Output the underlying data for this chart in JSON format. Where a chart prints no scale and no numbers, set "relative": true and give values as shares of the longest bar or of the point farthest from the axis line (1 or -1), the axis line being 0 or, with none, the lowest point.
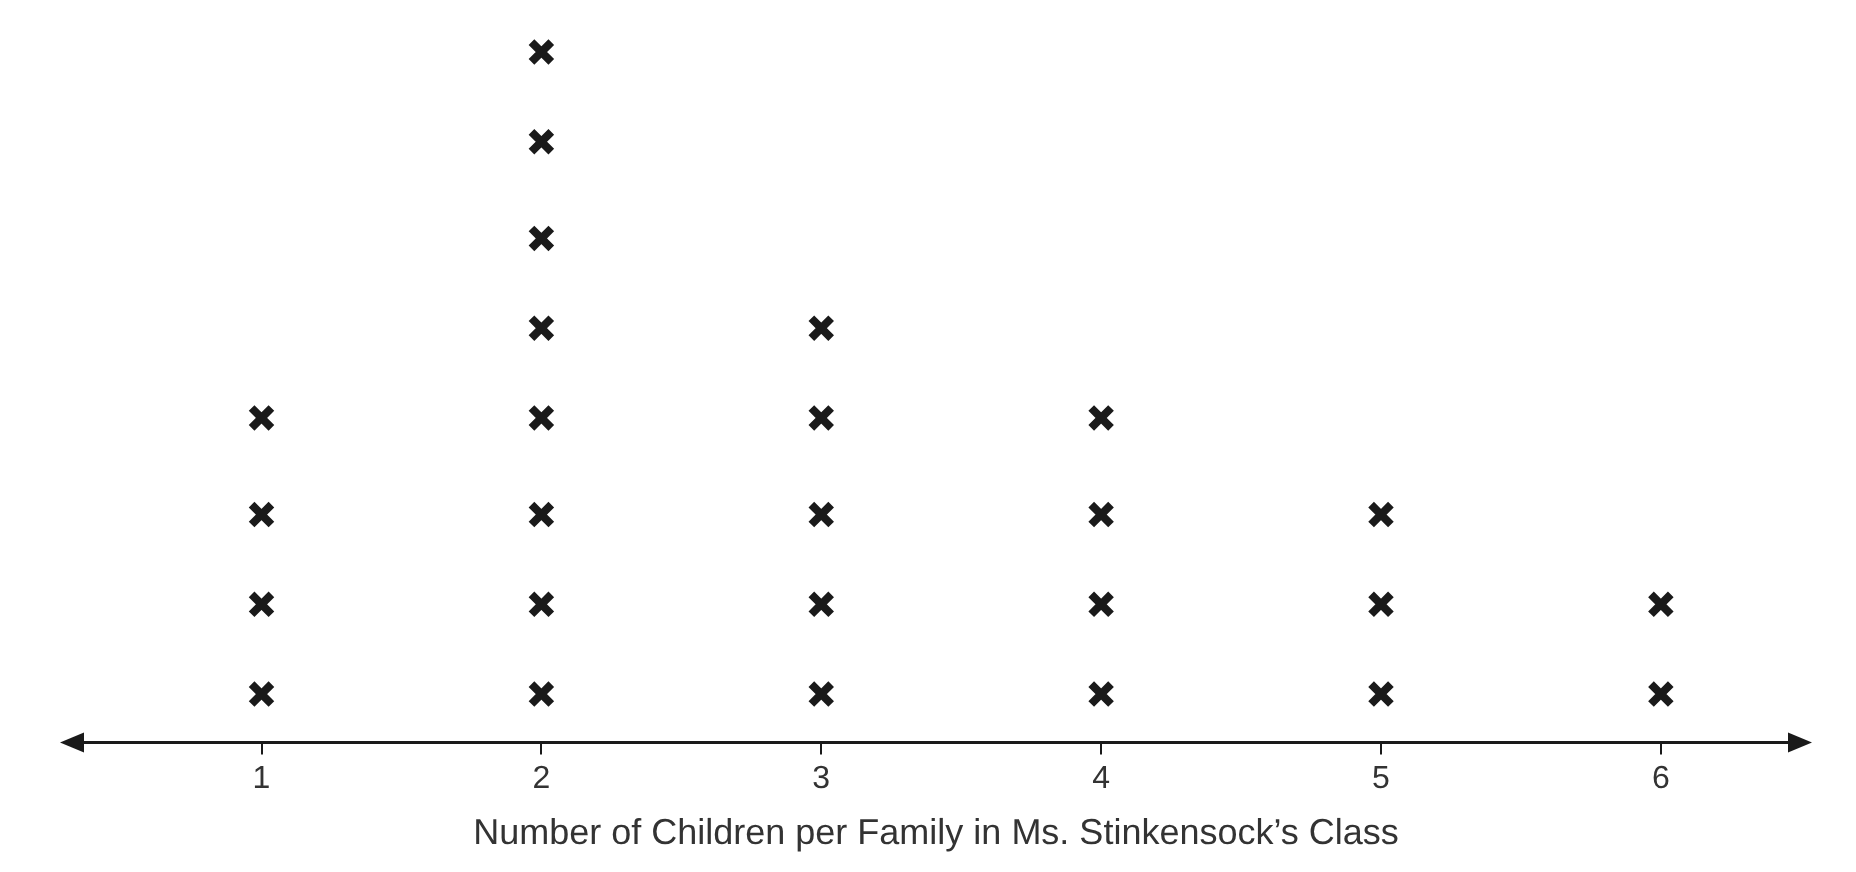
{
  "chart_data": {
    "type": "scatter",
    "xlabel": "Number of Children per Family in Ms. Stinkensock’s Class",
    "xlim": [
      0.28,
      6.54
    ],
    "xticks": [
      1,
      2,
      3,
      4,
      5,
      6
    ],
    "relative": true,
    "marker": "cross",
    "series": [
      {
        "color": "#1a1a1a",
        "x": [
          1,
          1,
          1,
          1,
          2,
          2,
          2,
          2,
          2,
          2,
          2,
          2,
          3,
          3,
          3,
          3,
          3,
          4,
          4,
          4,
          4,
          5,
          5,
          5,
          6,
          6
        ],
        "values": [
          0.07,
          0.2,
          0.33,
          0.47,
          0.07,
          0.2,
          0.33,
          0.47,
          0.6,
          0.73,
          0.87,
          1,
          0.07,
          0.2,
          0.33,
          0.47,
          0.6,
          0.07,
          0.2,
          0.33,
          0.47,
          0.07,
          0.2,
          0.33,
          0.07,
          0.2
        ]
      }
    ]
  }
}
